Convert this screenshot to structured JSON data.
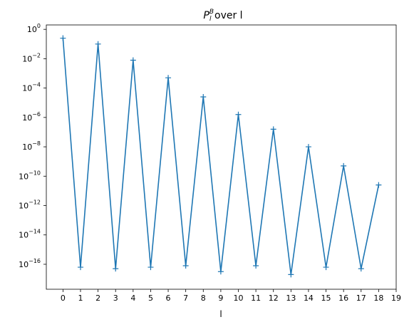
{
  "chart_data": {
    "type": "line",
    "title_main": "P",
    "title_sup": "B",
    "title_sub": "l",
    "title_rest": " over l",
    "xlabel": "l",
    "ylabel": "",
    "x_ticks": [
      0,
      1,
      2,
      3,
      4,
      5,
      6,
      7,
      8,
      9,
      10,
      11,
      12,
      13,
      14,
      15,
      16,
      17,
      18,
      19
    ],
    "y_tick_exponents": [
      0,
      -2,
      -4,
      -6,
      -8,
      -10,
      -12,
      -14,
      -16
    ],
    "y_scale": "log",
    "xlim": [
      -0.95,
      19
    ],
    "ylim_exp": [
      -17.7,
      0.3
    ],
    "grid": false,
    "marker": "+",
    "series": [
      {
        "color": "#1f77b4",
        "x": [
          0,
          1,
          2,
          3,
          4,
          5,
          6,
          7,
          8,
          9,
          10,
          11,
          12,
          13,
          14,
          15,
          16,
          17,
          18
        ],
        "y_exp": [
          -0.6,
          -16.2,
          -1.0,
          -16.3,
          -2.1,
          -16.2,
          -3.3,
          -16.1,
          -4.6,
          -16.5,
          -5.8,
          -16.1,
          -6.8,
          -16.7,
          -8.0,
          -16.2,
          -9.3,
          -16.3,
          -10.6
        ]
      }
    ]
  }
}
